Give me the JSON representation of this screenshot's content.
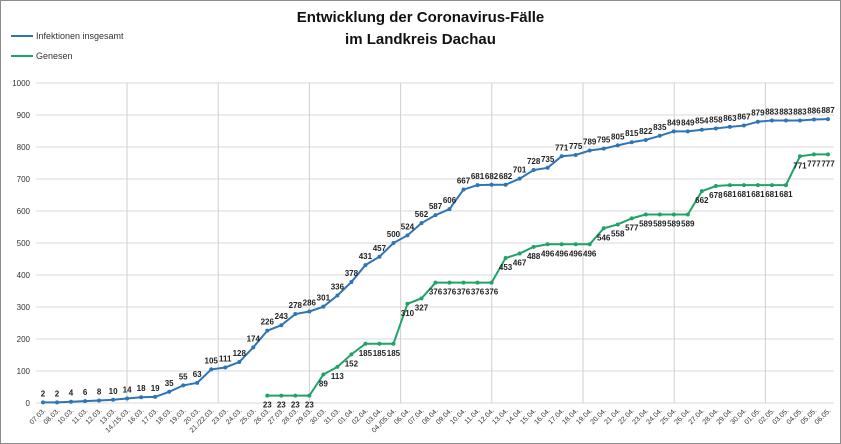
{
  "chart_data": {
    "type": "line",
    "title_line1": "Entwicklung der Coronavirus-Fälle",
    "title_line2": "im Landkreis Dachau",
    "xlabel": "",
    "ylabel": "",
    "ylim": [
      0,
      1000
    ],
    "yticks": [
      0,
      100,
      200,
      300,
      400,
      500,
      600,
      700,
      800,
      900,
      1000
    ],
    "grid": true,
    "legend_position": "top-left",
    "categories": [
      "07.03.",
      "08.03.",
      "10.03.",
      "11.03.",
      "12.03.",
      "13.03.",
      "14./15.03.",
      "16.03.",
      "17.03.",
      "18.03.",
      "19.03.",
      "20.03.",
      "21./22.03.",
      "23.03.",
      "24.03.",
      "25.03.",
      "26.03.",
      "27.03.",
      "28.03.",
      "29.03.",
      "30.03.",
      "31.03.",
      "01.04.",
      "02.04.",
      "03.04.",
      "04./05.04.",
      "06.04.",
      "07.04.",
      "08.04.",
      "09.04.",
      "10.04.",
      "11.04.",
      "12.04.",
      "13.04.",
      "14.04.",
      "15.04.",
      "16.04.",
      "17.04.",
      "18.04.",
      "19.04.",
      "20.04.",
      "21.04.",
      "22.04.",
      "23.04.",
      "24.04.",
      "25.04.",
      "26.04.",
      "27.04.",
      "28.04.",
      "29.04.",
      "30.04.",
      "01.05.",
      "02.05.",
      "03.05.",
      "04.05.",
      "05.05.",
      "06.05."
    ],
    "series": [
      {
        "name": "Infektionen insgesamt",
        "color": "#2e75b6",
        "label_pos": "above",
        "values": [
          2,
          2,
          4,
          6,
          8,
          10,
          14,
          18,
          19,
          35,
          55,
          63,
          105,
          111,
          128,
          174,
          226,
          243,
          278,
          286,
          301,
          336,
          378,
          431,
          457,
          500,
          524,
          562,
          587,
          606,
          667,
          681,
          682,
          682,
          701,
          728,
          735,
          771,
          775,
          789,
          795,
          805,
          815,
          822,
          835,
          849,
          849,
          854,
          858,
          863,
          867,
          879,
          883,
          883,
          883,
          886,
          887
        ]
      },
      {
        "name": "Genesen",
        "color": "#21a366",
        "label_pos": "below",
        "values": [
          null,
          null,
          null,
          null,
          null,
          null,
          null,
          null,
          null,
          null,
          null,
          null,
          null,
          null,
          null,
          null,
          23,
          23,
          23,
          23,
          89,
          113,
          152,
          185,
          185,
          185,
          310,
          327,
          376,
          376,
          376,
          376,
          376,
          453,
          467,
          488,
          496,
          496,
          496,
          496,
          546,
          558,
          577,
          589,
          589,
          589,
          589,
          662,
          678,
          681,
          681,
          681,
          681,
          681,
          771,
          777,
          777
        ]
      }
    ]
  }
}
